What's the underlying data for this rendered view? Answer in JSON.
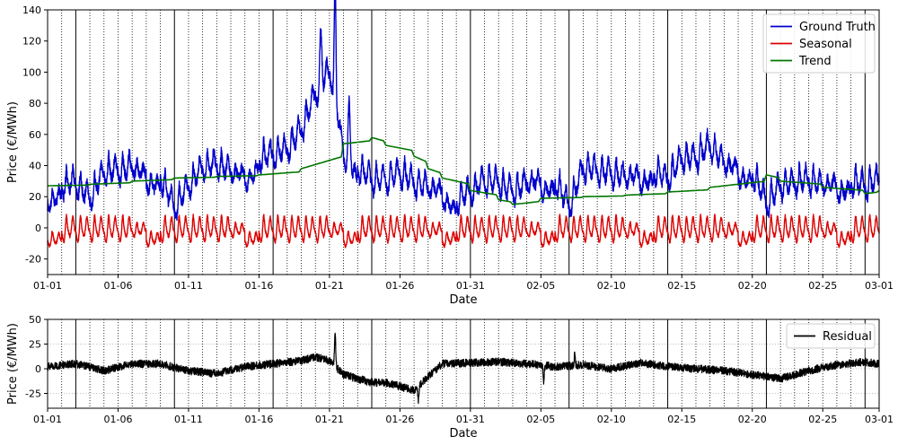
{
  "chart_data": [
    {
      "type": "line",
      "title": "",
      "xlabel": "Date",
      "ylabel": "Price (€/MWh)",
      "x_range": [
        "2023-01-01",
        "2023-03-01"
      ],
      "ylim": [
        -30,
        140
      ],
      "yticks": [
        -20,
        0,
        20,
        40,
        60,
        80,
        100,
        120,
        140
      ],
      "xtick_labels": [
        "01-01",
        "01-06",
        "01-11",
        "01-16",
        "01-21",
        "01-26",
        "01-31",
        "02-05",
        "02-10",
        "02-15",
        "02-20",
        "02-25",
        "03-01"
      ],
      "legend_position": "top-right",
      "grid": "vertical dotted daily lines, solid weekly lines",
      "series": [
        {
          "name": "Ground Truth",
          "color": "#0000cc",
          "x": [
            "01-01",
            "01-02",
            "01-03",
            "01-04",
            "01-05",
            "01-06",
            "01-07",
            "01-08",
            "01-09",
            "01-10",
            "01-11",
            "01-12",
            "01-13",
            "01-14",
            "01-15",
            "01-16",
            "01-17",
            "01-18",
            "01-19",
            "01-20",
            "01-21",
            "01-22",
            "01-23",
            "01-24",
            "01-25",
            "01-26",
            "01-27",
            "01-28",
            "01-29",
            "01-30",
            "01-31",
            "02-01",
            "02-02",
            "02-03",
            "02-04",
            "02-05",
            "02-06",
            "02-07",
            "02-08",
            "02-09",
            "02-10",
            "02-11",
            "02-12",
            "02-13",
            "02-14",
            "02-15",
            "02-16",
            "02-17",
            "02-18",
            "02-19",
            "02-20",
            "02-21",
            "02-22",
            "02-23",
            "02-24",
            "02-25",
            "02-26",
            "02-27",
            "02-28",
            "03-01"
          ],
          "y": [
            22,
            27,
            28,
            18,
            35,
            36,
            38,
            34,
            33,
            12,
            26,
            38,
            40,
            35,
            34,
            44,
            46,
            50,
            62,
            85,
            100,
            50,
            38,
            30,
            30,
            35,
            28,
            25,
            24,
            17,
            22,
            30,
            28,
            22,
            28,
            30,
            30,
            12,
            38,
            36,
            34,
            32,
            34,
            36,
            30,
            44,
            44,
            52,
            40,
            38,
            35,
            15,
            26,
            28,
            30,
            26,
            28,
            30,
            26,
            30
          ]
        },
        {
          "name": "Seasonal",
          "color": "#dd0000",
          "x": [
            "01-01",
            "01-08",
            "01-15",
            "01-22",
            "01-29",
            "02-05",
            "02-12",
            "02-19",
            "02-26"
          ],
          "y": [
            -2,
            -2,
            -2,
            -2,
            -2,
            -2,
            -2,
            -2,
            -2
          ]
        },
        {
          "name": "Trend",
          "color": "#007700",
          "x": [
            "01-01",
            "01-04",
            "01-07",
            "01-10",
            "01-13",
            "01-16",
            "01-19",
            "01-22",
            "01-24",
            "01-25",
            "01-27",
            "01-28",
            "01-29",
            "01-31",
            "02-02",
            "02-03",
            "02-05",
            "02-08",
            "02-11",
            "02-14",
            "02-17",
            "02-21",
            "02-22",
            "02-25",
            "02-28",
            "03-01"
          ],
          "y": [
            27,
            28,
            30,
            32,
            33,
            34,
            38,
            54,
            58,
            53,
            46,
            38,
            32,
            24,
            18,
            15,
            19,
            20,
            21,
            23,
            26,
            34,
            30,
            26,
            22,
            24
          ]
        }
      ]
    },
    {
      "type": "line",
      "title": "",
      "xlabel": "Date",
      "ylabel": "Price (€/MWh)",
      "x_range": [
        "2023-01-01",
        "2023-03-01"
      ],
      "ylim": [
        -40,
        50
      ],
      "yticks": [
        -25,
        0,
        25,
        50
      ],
      "xtick_labels": [
        "01-01",
        "01-06",
        "01-11",
        "01-16",
        "01-21",
        "01-26",
        "01-31",
        "02-05",
        "02-10",
        "02-15",
        "02-20",
        "02-25",
        "03-01"
      ],
      "legend_position": "top-right",
      "grid": "horizontal dotted lines, vertical dotted daily lines, solid weekly lines",
      "series": [
        {
          "name": "Residual",
          "color": "#000000",
          "x": [
            "01-01",
            "01-03",
            "01-05",
            "01-07",
            "01-09",
            "01-11",
            "01-13",
            "01-15",
            "01-17",
            "01-19",
            "01-20",
            "01-21",
            "01-22",
            "01-23",
            "01-24",
            "01-25",
            "01-26",
            "01-27",
            "01-28",
            "01-29",
            "01-31",
            "02-02",
            "02-04",
            "02-06",
            "02-08",
            "02-10",
            "02-12",
            "02-14",
            "02-16",
            "02-18",
            "02-20",
            "02-22",
            "02-24",
            "02-26",
            "02-28",
            "03-01"
          ],
          "y": [
            2,
            5,
            -2,
            5,
            5,
            -2,
            -5,
            2,
            5,
            8,
            12,
            8,
            -6,
            -10,
            -14,
            -14,
            -18,
            -22,
            -8,
            5,
            6,
            7,
            5,
            2,
            4,
            0,
            6,
            2,
            0,
            -2,
            -6,
            -10,
            -2,
            4,
            7,
            5
          ]
        }
      ]
    }
  ]
}
